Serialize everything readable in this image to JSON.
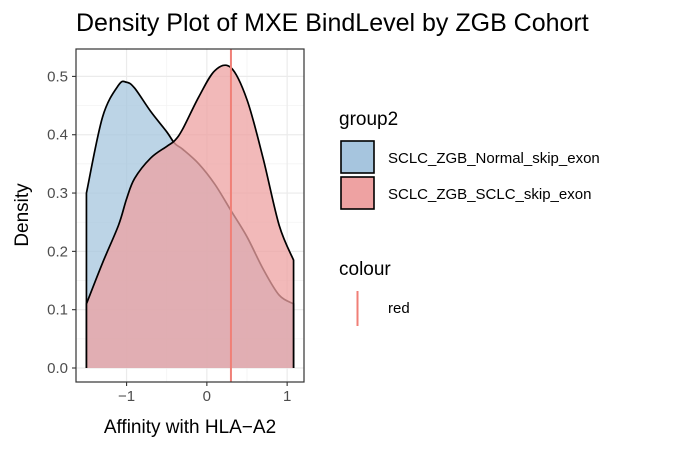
{
  "chart_data": {
    "type": "area",
    "title": "Density Plot of MXE BindLevel by ZGB Cohort",
    "xlabel": "Affinity with HLA−A2",
    "ylabel": "Density",
    "xlim": [
      -1.5,
      1.08
    ],
    "ylim": [
      0,
      0.52
    ],
    "x_ticks": [
      -1,
      0,
      1
    ],
    "x_tick_labels": [
      "−1",
      "0",
      "1"
    ],
    "y_ticks": [
      0.0,
      0.1,
      0.2,
      0.3,
      0.4,
      0.5
    ],
    "y_tick_labels": [
      "0.0",
      "0.1",
      "0.2",
      "0.3",
      "0.4",
      "0.5"
    ],
    "grid": true,
    "legend_placement": "right",
    "x": [
      -1.5,
      -1.3,
      -1.1,
      -1.0,
      -0.9,
      -0.7,
      -0.5,
      -0.4,
      -0.3,
      -0.1,
      0.1,
      0.3,
      0.5,
      0.7,
      0.9,
      1.08
    ],
    "series": [
      {
        "name": "SCLC_ZGB_Normal_skip_exon",
        "color": "#a6c5de",
        "values": [
          0.3,
          0.43,
          0.485,
          0.49,
          0.48,
          0.44,
          0.405,
          0.385,
          0.375,
          0.35,
          0.315,
          0.27,
          0.225,
          0.17,
          0.125,
          0.11
        ]
      },
      {
        "name": "SCLC_ZGB_SCLC_skip_exon",
        "color": "#eea2a2",
        "values": [
          0.11,
          0.18,
          0.245,
          0.29,
          0.325,
          0.36,
          0.38,
          0.39,
          0.41,
          0.465,
          0.51,
          0.515,
          0.46,
          0.36,
          0.245,
          0.185
        ]
      }
    ],
    "vline": {
      "x": 0.3,
      "color": "#f07f77"
    },
    "legend": {
      "fill_title": "group2",
      "colour_title": "colour",
      "colour_label": "red"
    }
  }
}
